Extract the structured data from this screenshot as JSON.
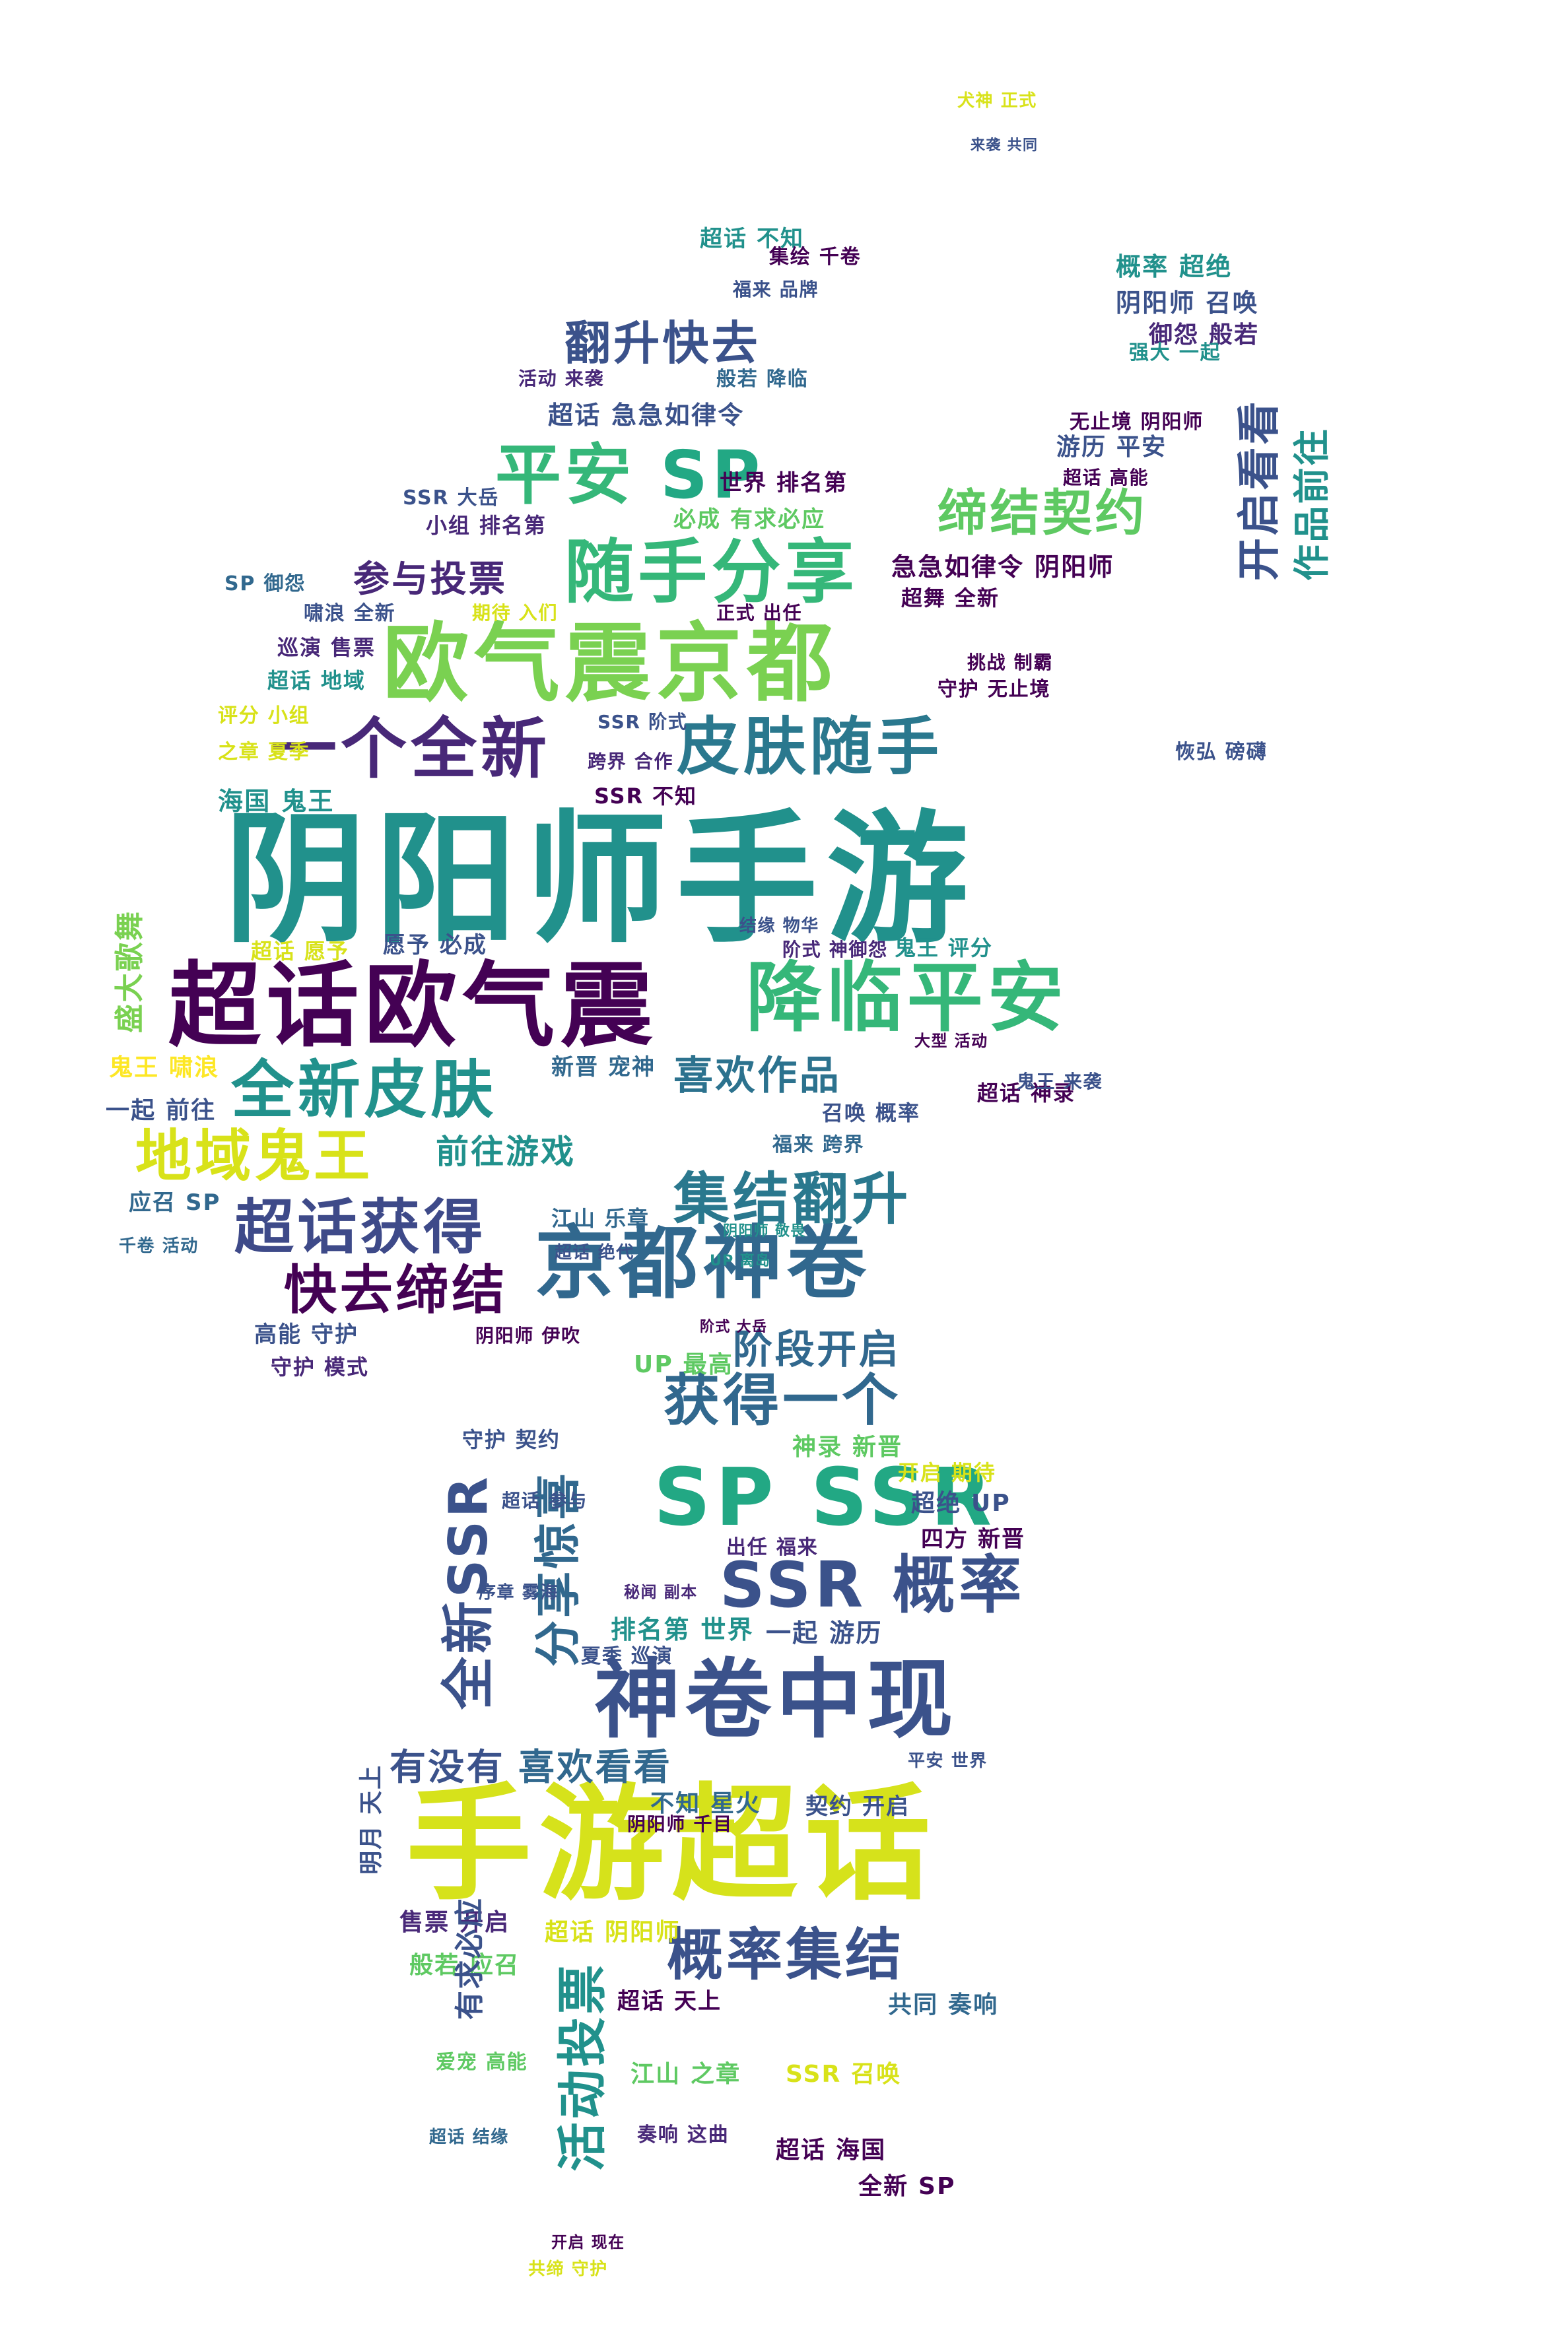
{
  "image": {
    "kind": "word cloud",
    "shape": "figure silhouette",
    "palette": [
      "#440154",
      "#3b528b",
      "#21918c",
      "#5ec962",
      "#fde725"
    ],
    "background": "#ffffff"
  },
  "words": [
    {
      "text": "阴阳师手游",
      "color": "#21918c"
    },
    {
      "text": "手游超话",
      "color": "#d6e21b"
    },
    {
      "text": "超话欧气震",
      "color": "#440154"
    },
    {
      "text": "欧气震京都",
      "color": "#7ad151"
    },
    {
      "text": "降临平安",
      "color": "#35b779"
    },
    {
      "text": "京都神卷",
      "color": "#31688e"
    },
    {
      "text": "SP SSR",
      "color": "#22a884"
    },
    {
      "text": "神卷中现",
      "color": "#3b528b"
    },
    {
      "text": "随手分享",
      "color": "#35b779"
    },
    {
      "text": "一个全新",
      "color": "#482878"
    },
    {
      "text": "皮肤随手",
      "color": "#2a788e"
    },
    {
      "text": "平安",
      "color": "#35b779"
    },
    {
      "text": "SP",
      "color": "#22a884"
    },
    {
      "text": "全新皮肤",
      "color": "#21918c"
    },
    {
      "text": "地域鬼王",
      "color": "#d8e219"
    },
    {
      "text": "超话获得",
      "color": "#3e4a89"
    },
    {
      "text": "集结翻升",
      "color": "#2a788e"
    },
    {
      "text": "快去缔结",
      "color": "#440154"
    },
    {
      "text": "SSR 概率",
      "color": "#3b528b"
    },
    {
      "text": "获得一个",
      "color": "#31688e"
    },
    {
      "text": "概率集结",
      "color": "#3b528b"
    },
    {
      "text": "有没有",
      "color": "#3b528b"
    },
    {
      "text": "喜欢看看",
      "color": "#31688e"
    },
    {
      "text": "喜欢作品",
      "color": "#2c728e"
    },
    {
      "text": "翻升快去",
      "color": "#3b528b"
    },
    {
      "text": "缔结契约",
      "color": "#5ec962"
    },
    {
      "text": "开启看看",
      "color": "#3b528b"
    },
    {
      "text": "作品前往",
      "color": "#21918c"
    },
    {
      "text": "阶段开启",
      "color": "#31688e"
    },
    {
      "text": "参与投票",
      "color": "#482878"
    },
    {
      "text": "前往游戏",
      "color": "#21918c"
    },
    {
      "text": "超话 急急如律令",
      "color": "#3b528b"
    },
    {
      "text": "急急如律令 阴阳师",
      "color": "#440154"
    },
    {
      "text": "游历 平安",
      "color": "#3b528b"
    },
    {
      "text": "世界 排名第",
      "color": "#440154"
    },
    {
      "text": "必成 有求必应",
      "color": "#5ec962"
    },
    {
      "text": "阴阳师 召唤",
      "color": "#3b528b"
    },
    {
      "text": "概率 超绝",
      "color": "#21918c"
    },
    {
      "text": "御怨 般若",
      "color": "#482878"
    },
    {
      "text": "海国 鬼王",
      "color": "#21918c"
    },
    {
      "text": "新晋 宠神",
      "color": "#31688e"
    },
    {
      "text": "鬼王 啸浪",
      "color": "#fde725"
    },
    {
      "text": "一起 前往",
      "color": "#3b528b"
    },
    {
      "text": "应召 SP",
      "color": "#31688e"
    },
    {
      "text": "高能 守护",
      "color": "#3b528b"
    },
    {
      "text": "守护 模式",
      "color": "#482878"
    },
    {
      "text": "江山 乐章",
      "color": "#31688e"
    },
    {
      "text": "UP 最高",
      "color": "#5ec962"
    },
    {
      "text": "神录 新晋",
      "color": "#5ec962"
    },
    {
      "text": "超绝 UP",
      "color": "#3b528b"
    },
    {
      "text": "四方 新晋",
      "color": "#440154"
    },
    {
      "text": "排名第 世界",
      "color": "#21918c"
    },
    {
      "text": "一起 游历",
      "color": "#3b528b"
    },
    {
      "text": "不知 星火",
      "color": "#31688e"
    },
    {
      "text": "契约 开启",
      "color": "#3b528b"
    },
    {
      "text": "售票 开启",
      "color": "#482878"
    },
    {
      "text": "般若 应召",
      "color": "#5ec962"
    },
    {
      "text": "超话 阴阳师",
      "color": "#d8e219"
    },
    {
      "text": "共同 奏响",
      "color": "#31688e"
    },
    {
      "text": "江山 之章",
      "color": "#5ec962"
    },
    {
      "text": "SSR 召唤",
      "color": "#d8e219"
    },
    {
      "text": "超话 海国",
      "color": "#440154"
    },
    {
      "text": "全新 SP",
      "color": "#440154"
    },
    {
      "text": "奏响 这曲",
      "color": "#482878"
    },
    {
      "text": "爱宠 高能",
      "color": "#5ec962"
    },
    {
      "text": "超话 结缘",
      "color": "#31688e"
    },
    {
      "text": "共缔 守护",
      "color": "#d8e219"
    },
    {
      "text": "开启 现在",
      "color": "#440154"
    },
    {
      "text": "活动投票",
      "color": "#21918c"
    },
    {
      "text": "全新SSR",
      "color": "#3b528b"
    },
    {
      "text": "分享惊喜",
      "color": "#31688e"
    },
    {
      "text": "盛大歌舞",
      "color": "#7ad151"
    },
    {
      "text": "超话 不知",
      "color": "#21918c"
    },
    {
      "text": "集绘 千卷",
      "color": "#440154"
    },
    {
      "text": "福来 品牌",
      "color": "#3b528b"
    },
    {
      "text": "活动 来袭",
      "color": "#482878"
    },
    {
      "text": "般若 降临",
      "color": "#31688e"
    },
    {
      "text": "超话 神录",
      "color": "#440154"
    },
    {
      "text": "召唤 概率",
      "color": "#3b528b"
    },
    {
      "text": "福来 跨界",
      "color": "#31688e"
    },
    {
      "text": "超舞 全新",
      "color": "#440154"
    },
    {
      "text": "正式 出任",
      "color": "#440154"
    },
    {
      "text": "期待 入们",
      "color": "#d8e219"
    },
    {
      "text": "巡演 售票",
      "color": "#482878"
    },
    {
      "text": "超话 地域",
      "color": "#21918c"
    },
    {
      "text": "评分 小组",
      "color": "#d8e219"
    },
    {
      "text": "之章 夏季",
      "color": "#d8e219"
    },
    {
      "text": "SP 御怨",
      "color": "#31688e"
    },
    {
      "text": "小组 排名第",
      "color": "#482878"
    },
    {
      "text": "SSR 大岳",
      "color": "#3b528b"
    },
    {
      "text": "啸浪 全新",
      "color": "#3b528b"
    },
    {
      "text": "超话 愿予",
      "color": "#d8e219"
    },
    {
      "text": "愿予 必成",
      "color": "#3b528b"
    },
    {
      "text": "阶式 神御怨",
      "color": "#482878"
    },
    {
      "text": "鬼王 评分",
      "color": "#21918c"
    },
    {
      "text": "SSR 不知",
      "color": "#440154"
    },
    {
      "text": "跨界 合作",
      "color": "#482878"
    },
    {
      "text": "SSR 阶式",
      "color": "#3b528b"
    },
    {
      "text": "守护 无止境",
      "color": "#440154"
    },
    {
      "text": "挑战 制霸",
      "color": "#440154"
    },
    {
      "text": "恢弘 磅礴",
      "color": "#3b528b"
    },
    {
      "text": "无止境 阴阳师",
      "color": "#440154"
    },
    {
      "text": "超话 高能",
      "color": "#440154"
    },
    {
      "text": "超话 绝代",
      "color": "#3b528b"
    },
    {
      "text": "阴阳师 伊吹",
      "color": "#440154"
    },
    {
      "text": "阴阳师 千目",
      "color": "#440154"
    },
    {
      "text": "夏季 巡演",
      "color": "#3b528b"
    },
    {
      "text": "序章 雾海",
      "color": "#3b528b"
    },
    {
      "text": "秘闻 副本",
      "color": "#482878"
    },
    {
      "text": "出任 福来",
      "color": "#482878"
    },
    {
      "text": "开启 期待",
      "color": "#d8e219"
    },
    {
      "text": "守护 契约",
      "color": "#3b528b"
    },
    {
      "text": "超话 参与",
      "color": "#3b528b"
    },
    {
      "text": "超话 天上",
      "color": "#440154"
    },
    {
      "text": "明月 天上",
      "color": "#3b528b"
    },
    {
      "text": "平安 世界",
      "color": "#3b528b"
    },
    {
      "text": "有求必应",
      "color": "#3b528b"
    },
    {
      "text": "犬神 正式",
      "color": "#d8e219"
    },
    {
      "text": "来袭 共同",
      "color": "#3b528b"
    },
    {
      "text": "强大 一起",
      "color": "#21918c"
    },
    {
      "text": "千卷 活动",
      "color": "#31688e"
    },
    {
      "text": "UP 离岛",
      "color": "#21918c"
    },
    {
      "text": "阴阳师 敬畏",
      "color": "#21918c"
    },
    {
      "text": "大型 活动",
      "color": "#440154"
    },
    {
      "text": "阶式 大岳",
      "color": "#440154"
    },
    {
      "text": "鬼王 来袭",
      "color": "#3b528b"
    },
    {
      "text": "结缘 物华",
      "color": "#3b528b"
    }
  ]
}
